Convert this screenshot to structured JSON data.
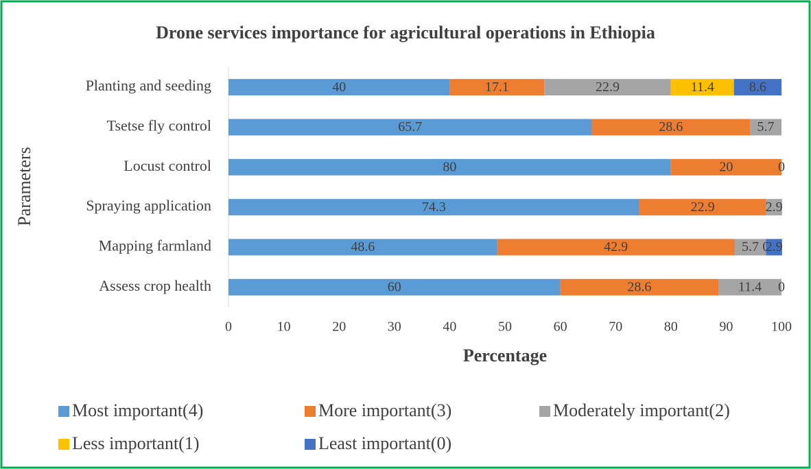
{
  "chart_data": {
    "type": "stacked_bar_horizontal",
    "title": "Drone services importance for agricultural operations in Ethiopia",
    "x_label": "Percentage",
    "y_label": "Parameters",
    "categories": [
      "Planting and seeding",
      "Tsetse fly control",
      "Locust control",
      "Spraying application",
      "Mapping farmland",
      "Assess crop health"
    ],
    "series": [
      {
        "name": "Most important(4)",
        "color": "#5b9bd5",
        "values": [
          40,
          65.7,
          80,
          74.3,
          48.6,
          60
        ]
      },
      {
        "name": "More important(3)",
        "color": "#ed7d31",
        "values": [
          17.1,
          28.6,
          20,
          22.9,
          42.9,
          28.6
        ]
      },
      {
        "name": "Moderately important(2)",
        "color": "#a5a5a5",
        "values": [
          22.9,
          5.7,
          0,
          2.9,
          5.7,
          11.4
        ]
      },
      {
        "name": "Less important(1)",
        "color": "#ffc000",
        "values": [
          11.4,
          null,
          null,
          null,
          0,
          0
        ]
      },
      {
        "name": "Least important(0)",
        "color": "#4472c4",
        "values": [
          8.6,
          null,
          null,
          null,
          2.9,
          null
        ]
      }
    ],
    "xlim": [
      0,
      100
    ],
    "xticks": [
      0,
      10,
      20,
      30,
      40,
      50,
      60,
      70,
      80,
      90,
      100
    ],
    "grid": false,
    "legend": "bottom"
  }
}
